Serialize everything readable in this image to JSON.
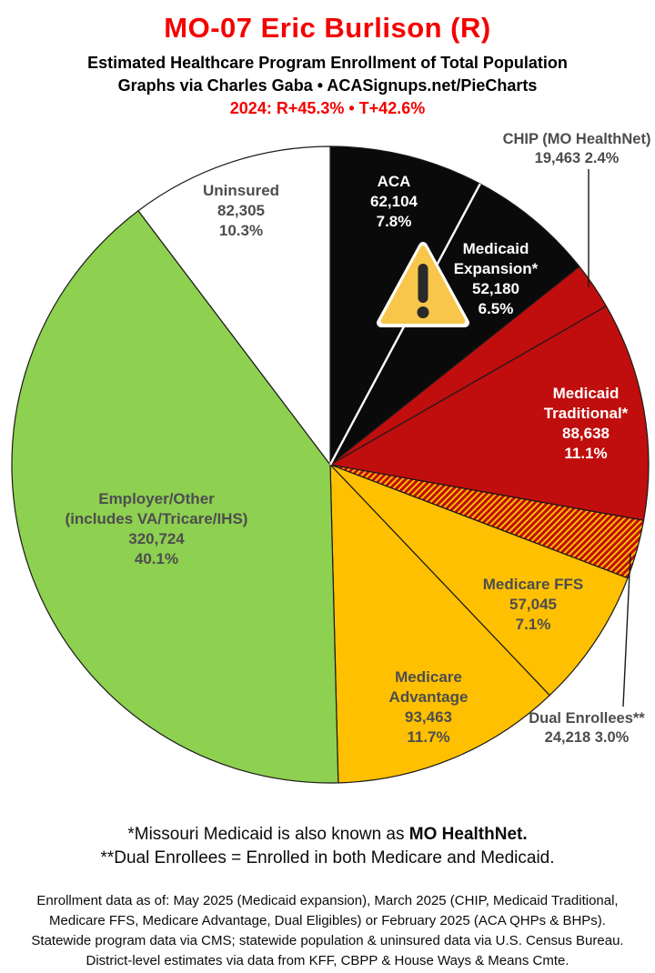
{
  "header": {
    "title": "MO-07 Eric Burlison (R)",
    "subtitle1": "Estimated Healthcare Program Enrollment of Total Population",
    "subtitle2": "Graphs via Charles Gaba  •  ACASignups.net/PieCharts",
    "subtitle3": "2024: R+45.3%  •  T+42.6%",
    "title_color": "#f40000"
  },
  "chart_data": {
    "type": "pie",
    "title": "Estimated Healthcare Program Enrollment of Total Population",
    "start_angle_deg": 0,
    "direction": "clockwise",
    "slice_border_color": "#1a1a1a",
    "divider_after_first_segment_color": "#ffffff",
    "label_text_color": "#4d4d4f",
    "segments": [
      {
        "name": "ACA",
        "label_lines": [
          "ACA"
        ],
        "value": 62104,
        "value_str": "62,104",
        "pct": 7.8,
        "pct_str": "7.8%",
        "color": "#0a0a0a",
        "text_color": "#ffffff",
        "pattern": "solid",
        "label_placement": "inside"
      },
      {
        "name": "Medicaid Expansion*",
        "label_lines": [
          "Medicaid",
          "Expansion*"
        ],
        "value": 52180,
        "value_str": "52,180",
        "pct": 6.5,
        "pct_str": "6.5%",
        "color": "#0a0a0a",
        "text_color": "#ffffff",
        "pattern": "solid",
        "label_placement": "inside"
      },
      {
        "name": "CHIP (MO HealthNet)",
        "label_lines": [
          "CHIP (MO HealthNet)"
        ],
        "value": 19463,
        "value_str": "19,463",
        "pct": 2.4,
        "pct_str": "2.4%",
        "color": "#c00d0d",
        "text_color": "#4d4d4f",
        "pattern": "solid",
        "label_placement": "outside-callout"
      },
      {
        "name": "Medicaid Traditional*",
        "label_lines": [
          "Medicaid",
          "Traditional*"
        ],
        "value": 88638,
        "value_str": "88,638",
        "pct": 11.1,
        "pct_str": "11.1%",
        "color": "#c00d0d",
        "text_color": "#ffffff",
        "pattern": "solid",
        "label_placement": "inside"
      },
      {
        "name": "Dual Enrollees**",
        "label_lines": [
          "Dual Enrollees**"
        ],
        "value": 24218,
        "value_str": "24,218",
        "pct": 3.0,
        "pct_str": "3.0%",
        "color": "#fec000",
        "stripe_color": "#c00d0d",
        "pattern": "diagonal-stripes",
        "text_color": "#4d4d4f",
        "label_placement": "outside-callout"
      },
      {
        "name": "Medicare FFS",
        "label_lines": [
          "Medicare FFS"
        ],
        "value": 57045,
        "value_str": "57,045",
        "pct": 7.1,
        "pct_str": "7.1%",
        "color": "#fec000",
        "text_color": "#4d4d4f",
        "pattern": "solid",
        "label_placement": "inside"
      },
      {
        "name": "Medicare Advantage",
        "label_lines": [
          "Medicare",
          "Advantage"
        ],
        "value": 93463,
        "value_str": "93,463",
        "pct": 11.7,
        "pct_str": "11.7%",
        "color": "#fec000",
        "text_color": "#4d4d4f",
        "pattern": "solid",
        "label_placement": "inside"
      },
      {
        "name": "Employer/Other (includes VA/Tricare/IHS)",
        "label_lines": [
          "Employer/Other",
          "(includes VA/Tricare/IHS)"
        ],
        "value": 320724,
        "value_str": "320,724",
        "pct": 40.1,
        "pct_str": "40.1%",
        "color": "#8ed050",
        "text_color": "#4d4d4f",
        "pattern": "solid",
        "label_placement": "inside"
      },
      {
        "name": "Uninsured",
        "label_lines": [
          "Uninsured"
        ],
        "value": 82305,
        "value_str": "82,305",
        "pct": 10.3,
        "pct_str": "10.3%",
        "color": "#ffffff",
        "text_color": "#4d4d4f",
        "pattern": "solid",
        "label_placement": "inside"
      }
    ],
    "warning_icon": {
      "shape": "exclamation-triangle",
      "fill": "#f7c64a",
      "outline": "#ffffff",
      "glyph_color": "#2a2a2a"
    }
  },
  "notes": {
    "note1_prefix": "*Missouri Medicaid is also known as ",
    "note1_bold": "MO HealthNet.",
    "note2": "**Dual Enrollees = Enrolled in both Medicare and Medicaid.",
    "source_lines": [
      "Enrollment data as of: May 2025 (Medicaid expansion), March 2025 (CHIP, Medicaid Traditional,",
      "Medicare FFS, Medicare Advantage, Dual Eligibles) or February 2025 (ACA QHPs & BHPs).",
      "Statewide program data via CMS; statewide population & uninsured data via U.S. Census Bureau.",
      "District-level estimates via data from KFF, CBPP & House Ways & Means Cmte."
    ]
  }
}
